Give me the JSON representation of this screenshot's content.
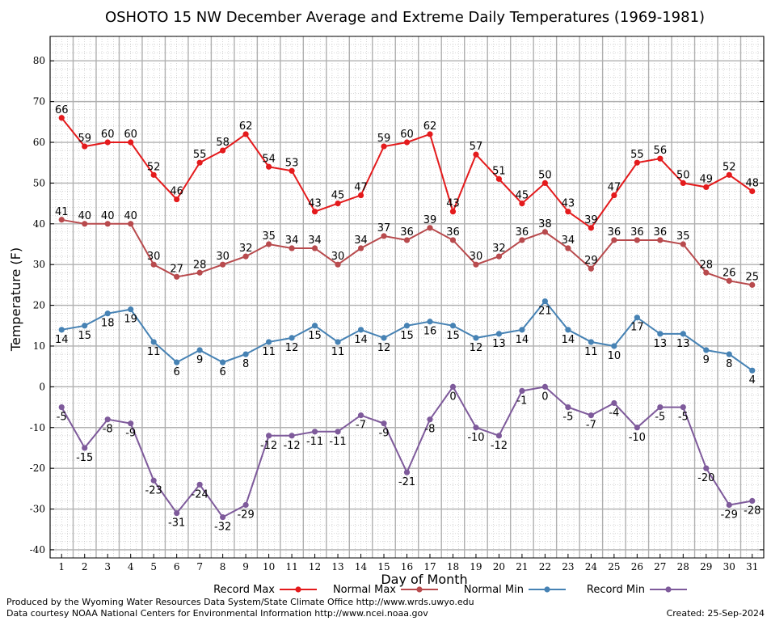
{
  "chart_data": {
    "type": "line",
    "title": "OSHOTO 15 NW December Average and Extreme Daily Temperatures (1969-1981)",
    "xlabel": "Day of Month",
    "ylabel": "Temperature (F)",
    "ylim": [
      -42,
      86
    ],
    "yticks": [
      -40,
      -30,
      -20,
      -10,
      0,
      10,
      20,
      30,
      40,
      50,
      60,
      70,
      80
    ],
    "x": [
      1,
      2,
      3,
      4,
      5,
      6,
      7,
      8,
      9,
      10,
      11,
      12,
      13,
      14,
      15,
      16,
      17,
      18,
      19,
      20,
      21,
      22,
      23,
      24,
      25,
      26,
      27,
      28,
      29,
      30,
      31
    ],
    "grid": true,
    "legend_position": "bottom",
    "series": [
      {
        "name": "Record Max",
        "color": "#e41a1c",
        "label_pos": "above",
        "values": [
          66,
          59,
          60,
          60,
          52,
          46,
          55,
          58,
          62,
          54,
          53,
          43,
          45,
          47,
          59,
          60,
          62,
          43,
          57,
          51,
          45,
          50,
          43,
          39,
          47,
          55,
          56,
          50,
          49,
          52,
          48
        ]
      },
      {
        "name": "Normal Max",
        "color": "#b84a4d",
        "label_pos": "above",
        "values": [
          41,
          40,
          40,
          40,
          30,
          27,
          28,
          30,
          32,
          35,
          34,
          34,
          30,
          34,
          37,
          36,
          39,
          36,
          30,
          32,
          36,
          38,
          34,
          29,
          36,
          36,
          36,
          35,
          28,
          26,
          25
        ]
      },
      {
        "name": "Normal Min",
        "color": "#4682b4",
        "label_pos": "below",
        "values": [
          14,
          15,
          18,
          19,
          11,
          6,
          9,
          6,
          8,
          11,
          12,
          15,
          11,
          14,
          12,
          15,
          16,
          15,
          12,
          13,
          14,
          21,
          14,
          11,
          10,
          17,
          13,
          13,
          9,
          8,
          4
        ]
      },
      {
        "name": "Record Min",
        "color": "#7e5a9b",
        "label_pos": "below",
        "values": [
          -5,
          -15,
          -8,
          -9,
          -23,
          -31,
          -24,
          -32,
          -29,
          -12,
          -12,
          -11,
          -11,
          -7,
          -9,
          -21,
          -8,
          0,
          -10,
          -12,
          -1,
          0,
          -5,
          -7,
          -4,
          -10,
          -5,
          -5,
          -20,
          -29,
          -28
        ]
      }
    ]
  },
  "footer": {
    "line1": "Produced by the Wyoming Water Resources Data System/State Climate Office http://www.wrds.uwyo.edu",
    "line2": "Data courtesy NOAA National Centers for Environmental Information http://www.ncei.noaa.gov",
    "created": "Created:  25-Sep-2024"
  }
}
